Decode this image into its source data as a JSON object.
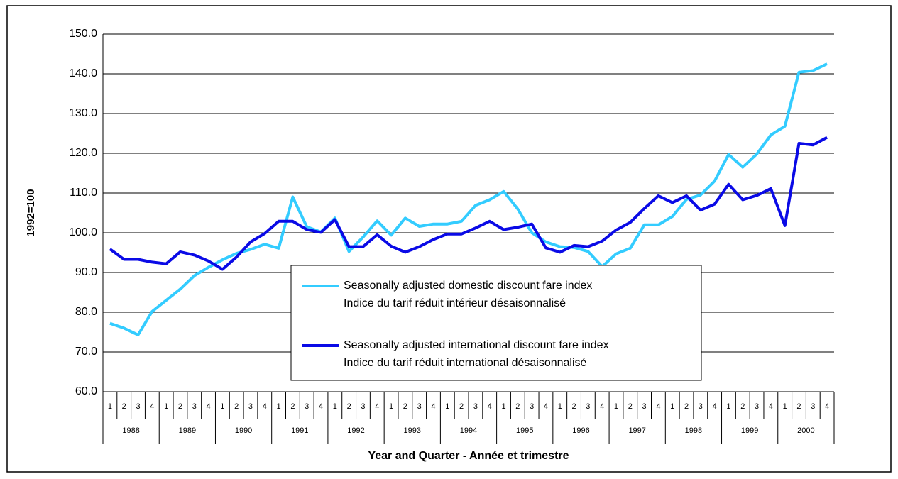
{
  "chart_data": {
    "type": "line",
    "ylabel": "1992=100",
    "xlabel": "Year and Quarter - Année et trimestre",
    "categories": [
      "1",
      "2",
      "3",
      "4",
      "1",
      "2",
      "3",
      "4",
      "1",
      "2",
      "3",
      "4",
      "1",
      "2",
      "3",
      "4",
      "1",
      "2",
      "3",
      "4",
      "1",
      "2",
      "3",
      "4",
      "1",
      "2",
      "3",
      "4",
      "1",
      "2",
      "3",
      "4",
      "1",
      "2",
      "3",
      "4",
      "1",
      "2",
      "3",
      "4",
      "1",
      "2",
      "3",
      "4",
      "1",
      "2",
      "3",
      "4",
      "1",
      "2",
      "3",
      "4"
    ],
    "years": [
      "1988",
      "1989",
      "1990",
      "1991",
      "1992",
      "1993",
      "1994",
      "1995",
      "1996",
      "1997",
      "1998",
      "1999",
      "2000"
    ],
    "series": [
      {
        "name": "Seasonally adjusted domestic discount fare index",
        "name_fr": "Indice du tarif réduit intérieur désaisonnalisé",
        "color": "#33ccff",
        "values": [
          77.2,
          76.0,
          74.3,
          80.2,
          83.0,
          85.8,
          89.2,
          91.3,
          93.2,
          94.8,
          95.8,
          97.1,
          96.1,
          109.0,
          101.5,
          100.2,
          103.7,
          95.3,
          98.9,
          103.0,
          99.4,
          103.7,
          101.6,
          102.2,
          102.2,
          102.9,
          106.9,
          108.3,
          110.4,
          106.0,
          100.0,
          97.7,
          96.5,
          96.3,
          95.3,
          91.5,
          94.7,
          96.1,
          102.0,
          102.0,
          104.1,
          108.4,
          109.5,
          113.0,
          119.7,
          116.5,
          119.8,
          124.6,
          126.8,
          140.4,
          140.8,
          142.5
        ]
      },
      {
        "name": "Seasonally adjusted international discount fare index",
        "name_fr": "Indice du tarif réduit international désaisonnalisé",
        "color": "#0a0ae6",
        "values": [
          95.9,
          93.3,
          93.3,
          92.6,
          92.2,
          95.2,
          94.4,
          92.9,
          90.8,
          93.9,
          97.7,
          99.8,
          102.9,
          102.9,
          100.8,
          100.1,
          103.3,
          96.5,
          96.5,
          99.5,
          96.6,
          95.1,
          96.5,
          98.3,
          99.7,
          99.7,
          101.2,
          102.9,
          100.8,
          101.4,
          102.2,
          96.2,
          95.1,
          96.8,
          96.5,
          97.9,
          100.7,
          102.6,
          106.1,
          109.3,
          107.6,
          109.3,
          105.7,
          107.2,
          112.2,
          108.3,
          109.4,
          111.1,
          101.8,
          122.5,
          122.1,
          124.0
        ]
      }
    ],
    "ylim": [
      60,
      150
    ],
    "yticks": [
      {
        "value": 60,
        "label": "60.0"
      },
      {
        "value": 70,
        "label": "70.0"
      },
      {
        "value": 80,
        "label": "80.0"
      },
      {
        "value": 90,
        "label": "90.0"
      },
      {
        "value": 100,
        "label": "100.0"
      },
      {
        "value": 110,
        "label": "110.0"
      },
      {
        "value": 120,
        "label": "120.0"
      },
      {
        "value": 130,
        "label": "130.0"
      },
      {
        "value": 140,
        "label": "140.0"
      },
      {
        "value": 150,
        "label": "150.0"
      }
    ],
    "grid": true
  }
}
